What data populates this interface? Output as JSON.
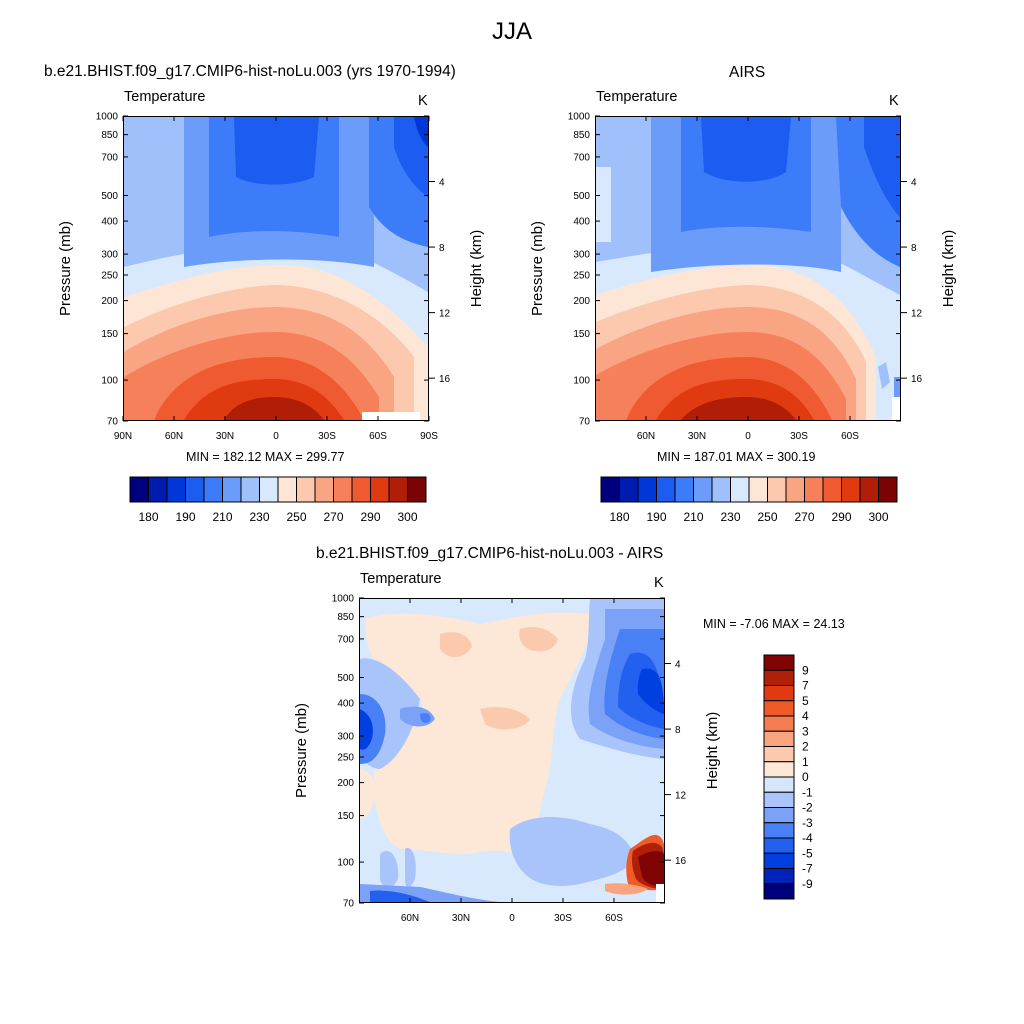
{
  "page": {
    "title": "JJA"
  },
  "colors": {
    "absolute_scale": [
      "#00007f",
      "#001cb0",
      "#0038d8",
      "#1c5cf0",
      "#3c7cf8",
      "#6c9cfa",
      "#a0c0fc",
      "#d8e8fd",
      "#fde6d6",
      "#fcc8ae",
      "#f9a482",
      "#f6805a",
      "#f05a30",
      "#e03a10",
      "#b01e08",
      "#7a0404"
    ],
    "difference_scale": [
      "#00007f",
      "#0022b8",
      "#0040e0",
      "#2260f0",
      "#4a80f5",
      "#7ca2f8",
      "#a8c4fa",
      "#d6e6fd",
      "#fde8d8",
      "#fbcaae",
      "#f8a47e",
      "#f47c50",
      "#f05a28",
      "#e23a10",
      "#b02008",
      "#800404"
    ]
  },
  "panels": [
    {
      "title": "b.e21.BHIST.f09_g17.CMIP6-hist-noLu.003 (yrs 1970-1994)",
      "variable": "Temperature",
      "units": "K",
      "min_max": "MIN = 182.12  MAX = 299.77",
      "colorbar_labels": [
        "180",
        "190",
        "210",
        "230",
        "250",
        "270",
        "290",
        "300"
      ]
    },
    {
      "title": "AIRS",
      "variable": "Temperature",
      "units": "K",
      "min_max": "MIN = 187.01  MAX = 300.19",
      "colorbar_labels": [
        "180",
        "190",
        "210",
        "230",
        "250",
        "270",
        "290",
        "300"
      ]
    },
    {
      "title": "b.e21.BHIST.f09_g17.CMIP6-hist-noLu.003 - AIRS",
      "variable": "Temperature",
      "units": "K",
      "min_max": "MIN =  -7.06  MAX =  24.13",
      "colorbar_labels": [
        "9",
        "7",
        "5",
        "4",
        "3",
        "2",
        "1",
        "0",
        "-1",
        "-2",
        "-3",
        "-4",
        "-5",
        "-7",
        "-9"
      ]
    }
  ],
  "chart_data": [
    {
      "type": "heatmap",
      "title": "b.e21.BHIST.f09_g17.CMIP6-hist-noLu.003 (yrs 1970-1994)",
      "ylabel": "Pressure (mb)",
      "y2label": "Height (km)",
      "x_ticks": [
        "90N",
        "60N",
        "30N",
        "0",
        "30S",
        "60S",
        "90S"
      ],
      "y_ticks": [
        "70",
        "100",
        "150",
        "200",
        "250",
        "300",
        "400",
        "500",
        "700",
        "850",
        "1000"
      ],
      "y2_ticks": [
        "16",
        "12",
        "8",
        "4"
      ],
      "xlim": [
        90,
        -90
      ],
      "ylim": [
        1000,
        70
      ],
      "y_scale": "log",
      "min": 182.12,
      "max": 299.77
    },
    {
      "type": "heatmap",
      "title": "AIRS",
      "ylabel": "Pressure (mb)",
      "y2label": "Height (km)",
      "x_ticks": [
        "60N",
        "30N",
        "0",
        "30S",
        "60S"
      ],
      "y_ticks": [
        "70",
        "100",
        "150",
        "200",
        "250",
        "300",
        "400",
        "500",
        "700",
        "850",
        "1000"
      ],
      "y2_ticks": [
        "16",
        "12",
        "8",
        "4"
      ],
      "y_scale": "log",
      "min": 187.01,
      "max": 300.19
    },
    {
      "type": "heatmap",
      "title": "b.e21.BHIST.f09_g17.CMIP6-hist-noLu.003 - AIRS",
      "ylabel": "Pressure (mb)",
      "y2label": "Height (km)",
      "x_ticks": [
        "60N",
        "30N",
        "0",
        "30S",
        "60S"
      ],
      "y_ticks": [
        "70",
        "100",
        "150",
        "200",
        "250",
        "300",
        "400",
        "500",
        "700",
        "850",
        "1000"
      ],
      "y2_ticks": [
        "16",
        "12",
        "8",
        "4"
      ],
      "y_scale": "log",
      "min": -7.06,
      "max": 24.13
    }
  ]
}
